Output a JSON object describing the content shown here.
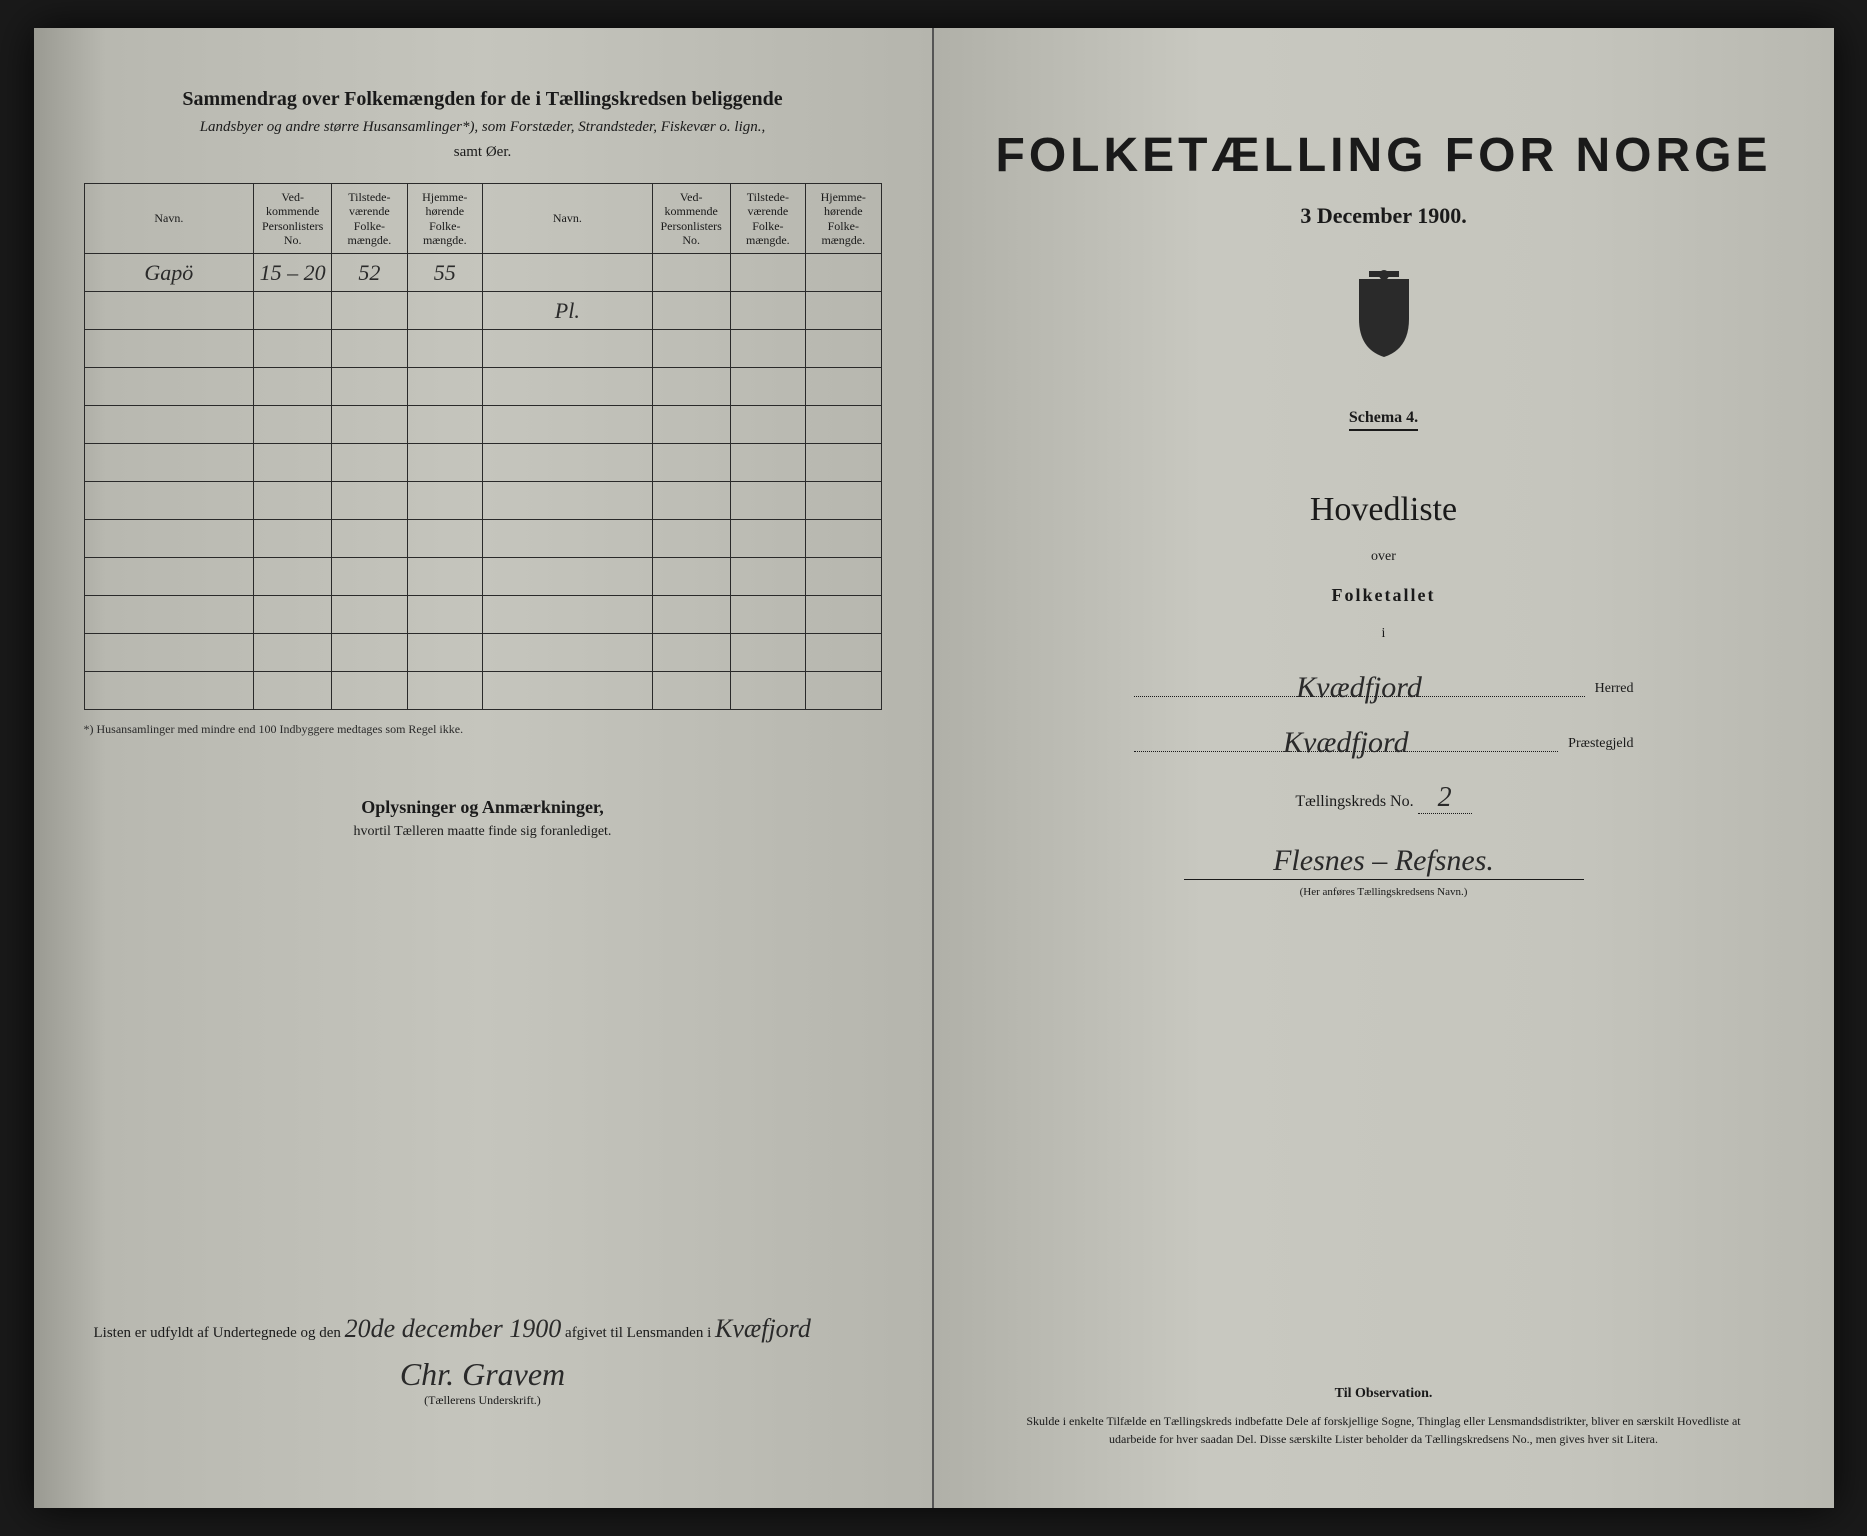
{
  "left": {
    "title": "Sammendrag over Folkemængden for de i Tællingskredsen beliggende",
    "subtitle1": "Landsbyer og andre større Husansamlinger*), som Forstæder, Strandsteder, Fiskevær o. lign.,",
    "subtitle2": "samt Øer.",
    "table": {
      "headers": [
        "Navn.",
        "Ved-\nkommende\nPersonlisters\nNo.",
        "Tilstede-\nværende\nFolke-\nmængde.",
        "Hjemme-\nhørende\nFolke-\nmængde.",
        "Navn.",
        "Ved-\nkommende\nPersonlisters\nNo.",
        "Tilstede-\nværende\nFolke-\nmængde.",
        "Hjemme-\nhørende\nFolke-\nmængde."
      ],
      "rows": [
        [
          "Gapö",
          "15 – 20",
          "52",
          "55",
          "",
          "",
          "",
          ""
        ],
        [
          "",
          "",
          "",
          "",
          "Pl.",
          "",
          "",
          ""
        ],
        [
          "",
          "",
          "",
          "",
          "",
          "",
          "",
          ""
        ],
        [
          "",
          "",
          "",
          "",
          "",
          "",
          "",
          ""
        ],
        [
          "",
          "",
          "",
          "",
          "",
          "",
          "",
          ""
        ],
        [
          "",
          "",
          "",
          "",
          "",
          "",
          "",
          ""
        ],
        [
          "",
          "",
          "",
          "",
          "",
          "",
          "",
          ""
        ],
        [
          "",
          "",
          "",
          "",
          "",
          "",
          "",
          ""
        ],
        [
          "",
          "",
          "",
          "",
          "",
          "",
          "",
          ""
        ],
        [
          "",
          "",
          "",
          "",
          "",
          "",
          "",
          ""
        ],
        [
          "",
          "",
          "",
          "",
          "",
          "",
          "",
          ""
        ],
        [
          "",
          "",
          "",
          "",
          "",
          "",
          "",
          ""
        ]
      ]
    },
    "footnote": "*) Husansamlinger med mindre end 100 Indbyggere medtages som Regel ikke.",
    "oplysninger_title": "Oplysninger og Anmærkninger,",
    "oplysninger_sub": "hvortil Tælleren maatte finde sig foranlediget.",
    "bottom_text_1": "Listen er udfyldt af Undertegnede og den",
    "bottom_date": "20de december 1900",
    "bottom_text_2": "afgivet til Lensmanden i",
    "bottom_place": "Kvæfjord",
    "signature": "Chr. Gravem",
    "signature_label": "(Tællerens Underskrift.)"
  },
  "right": {
    "main_title": "FOLKETÆLLING FOR NORGE",
    "main_date": "3 December 1900.",
    "schema": "Schema 4.",
    "hovedliste": "Hovedliste",
    "over": "over",
    "folketallet": "Folketallet",
    "i": "i",
    "herred_value": "Kvædfjord",
    "herred_label": "Herred",
    "prastegjeld_value": "Kvædfjord",
    "prastegjeld_label": "Præstegjeld",
    "kreds_label": "Tællingskreds No.",
    "kreds_no": "2",
    "kreds_name": "Flesnes – Refsnes.",
    "kreds_hint": "(Her anføres Tællingskredsens Navn.)",
    "obs_title": "Til Observation.",
    "obs_text": "Skulde i enkelte Tilfælde en Tællingskreds indbefatte Dele af forskjellige Sogne, Thinglag eller Lensmandsdistrikter, bliver en særskilt Hovedliste at udarbeide for hver saadan Del. Disse særskilte Lister beholder da Tællingskredsens No., men gives hver sit Litera."
  },
  "colors": {
    "paper": "#c5c5bd",
    "ink": "#1a1a1a",
    "border": "#2a2a2a"
  }
}
